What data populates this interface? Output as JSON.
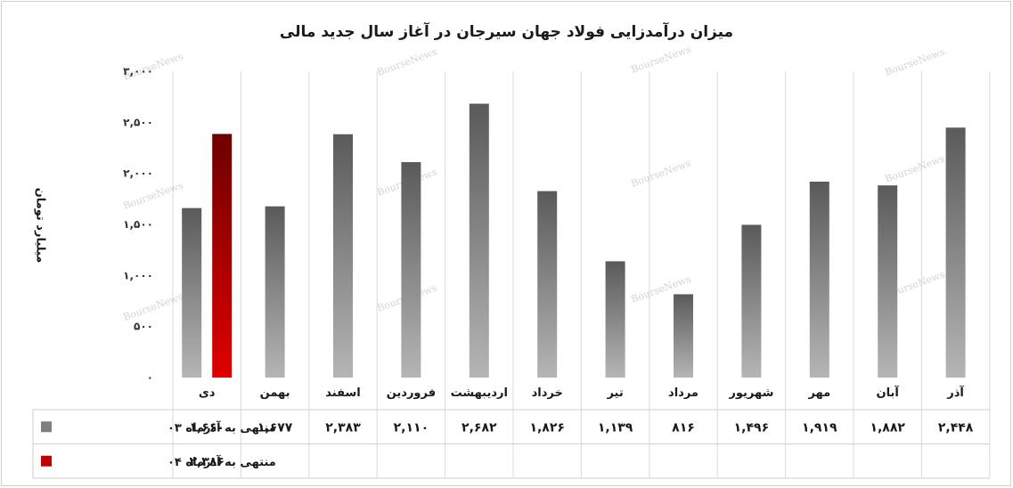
{
  "chart_data": {
    "type": "bar",
    "title": "میزان درآمدزایی فولاد جهان سیرجان در آغاز سال جدید مالی",
    "ylabel": "میلیارد تومان",
    "ylim": [
      0,
      3000
    ],
    "yticks": [
      0,
      500,
      1000,
      1500,
      2000,
      2500,
      3000
    ],
    "ytick_labels": [
      "۰",
      "۵۰۰",
      "۱,۰۰۰",
      "۱,۵۰۰",
      "۲,۰۰۰",
      "۲,۵۰۰",
      "۳,۰۰۰"
    ],
    "categories": [
      "دی",
      "بهمن",
      "اسفند",
      "فروردین",
      "اردیبهشت",
      "خرداد",
      "تیر",
      "مرداد",
      "شهریور",
      "مهر",
      "آبان",
      "آذر"
    ],
    "series": [
      {
        "name": "منتهی به آذرماه ۰۳",
        "color": "#7f7f7f",
        "values": [
          1660,
          1677,
          2383,
          2110,
          2682,
          1826,
          1139,
          816,
          1496,
          1919,
          1882,
          2448
        ],
        "labels": [
          "۱,۶۶۰",
          "۱,۶۷۷",
          "۲,۳۸۳",
          "۲,۱۱۰",
          "۲,۶۸۲",
          "۱,۸۲۶",
          "۱,۱۳۹",
          "۸۱۶",
          "۱,۴۹۶",
          "۱,۹۱۹",
          "۱,۸۸۲",
          "۲,۴۴۸"
        ]
      },
      {
        "name": "منتهی به آذرماه ۰۴",
        "color": "#c00000",
        "values": [
          2386,
          null,
          null,
          null,
          null,
          null,
          null,
          null,
          null,
          null,
          null,
          null
        ],
        "labels": [
          "۲,۳۸۶",
          "",
          "",
          "",
          "",
          "",
          "",
          "",
          "",
          "",
          "",
          ""
        ]
      }
    ],
    "grid": "vertical-category-separators",
    "legend": "data-table-left"
  },
  "watermark": "BourseNews"
}
